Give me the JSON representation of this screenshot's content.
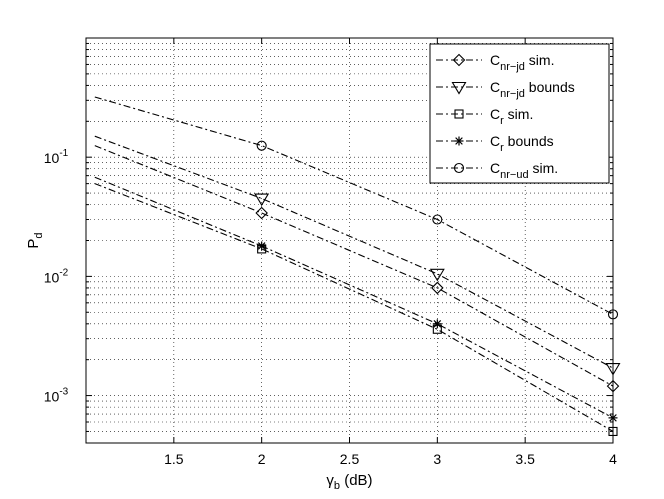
{
  "chart_data": {
    "type": "line",
    "xlabel": {
      "main": "γ",
      "sub": "b",
      "unit": " (dB)"
    },
    "ylabel": {
      "main": "P",
      "sub": "d"
    },
    "xlim": [
      1.0,
      4.0
    ],
    "ylim": [
      0.0004,
      1
    ],
    "yscale": "log",
    "grid": true,
    "legend_position": "top-right",
    "x_ticks": [
      1.5,
      2,
      2.5,
      3,
      3.5,
      4
    ],
    "x_tick_labels": [
      "1.5",
      "2",
      "2.5",
      "3",
      "3.5",
      "4"
    ],
    "y_ticks": [
      0.001,
      0.01,
      0.1
    ],
    "y_tick_labels": [
      {
        "base": "10",
        "exp": "-3"
      },
      {
        "base": "10",
        "exp": "-2"
      },
      {
        "base": "10",
        "exp": "-1"
      }
    ],
    "series": [
      {
        "name": {
          "main": "C",
          "sub": "nr−jd",
          "suffix": " sim."
        },
        "marker": "diamond",
        "x": [
          1.05,
          2,
          3,
          4
        ],
        "y": [
          0.125,
          0.034,
          0.008,
          0.0012
        ],
        "marker_x": [
          2,
          3,
          4
        ]
      },
      {
        "name": {
          "main": "C",
          "sub": "nr−jd",
          "suffix": " bounds"
        },
        "marker": "triangle-down",
        "x": [
          1.05,
          2,
          3,
          4
        ],
        "y": [
          0.15,
          0.045,
          0.0105,
          0.0017
        ],
        "marker_x": [
          2,
          3,
          4
        ]
      },
      {
        "name": {
          "main": "C",
          "sub": "r",
          "suffix": " sim."
        },
        "marker": "square",
        "x": [
          1.05,
          2,
          3,
          4
        ],
        "y": [
          0.06,
          0.017,
          0.0036,
          0.0005
        ],
        "marker_x": [
          2,
          3,
          4
        ]
      },
      {
        "name": {
          "main": "C",
          "sub": "r",
          "suffix": " bounds"
        },
        "marker": "star",
        "x": [
          1.05,
          2,
          3,
          4
        ],
        "y": [
          0.068,
          0.018,
          0.004,
          0.00065
        ],
        "marker_x": [
          2,
          3,
          4
        ]
      },
      {
        "name": {
          "main": "C",
          "sub": "nr−ud",
          "suffix": " sim."
        },
        "marker": "circle",
        "x": [
          1.05,
          2,
          3,
          4
        ],
        "y": [
          0.32,
          0.125,
          0.03,
          0.0048
        ],
        "marker_x": [
          2,
          3,
          4
        ]
      }
    ]
  }
}
